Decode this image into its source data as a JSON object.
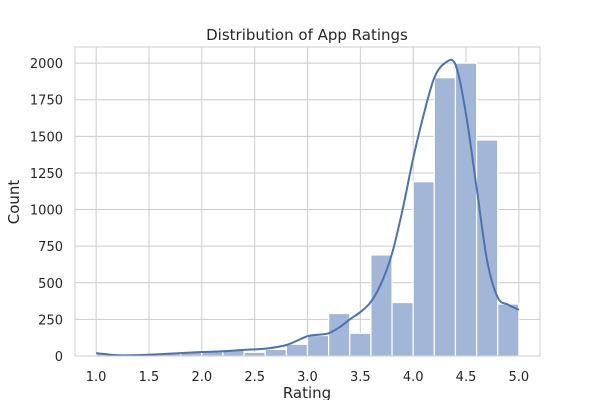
{
  "chart_data": {
    "type": "bar",
    "title": "Distribution of App Ratings",
    "xlabel": "Rating",
    "ylabel": "Count",
    "xlim": [
      0.8,
      5.2
    ],
    "ylim": [
      0,
      2110
    ],
    "xticks": [
      1.0,
      1.5,
      2.0,
      2.5,
      3.0,
      3.5,
      4.0,
      4.5,
      5.0
    ],
    "xtick_labels": [
      "1.0",
      "1.5",
      "2.0",
      "2.5",
      "3.0",
      "3.5",
      "4.0",
      "4.5",
      "5.0"
    ],
    "yticks": [
      0,
      250,
      500,
      750,
      1000,
      1250,
      1500,
      1750,
      2000
    ],
    "ytick_labels": [
      "0",
      "250",
      "500",
      "750",
      "1000",
      "1250",
      "1500",
      "1750",
      "2000"
    ],
    "grid": true,
    "bin_edges": [
      1.0,
      1.2,
      1.4,
      1.6,
      1.8,
      2.0,
      2.2,
      2.4,
      2.6,
      2.8,
      3.0,
      3.2,
      3.4,
      3.6,
      3.8,
      4.0,
      4.2,
      4.4,
      4.6,
      4.8,
      5.0
    ],
    "counts": [
      17,
      3,
      11,
      15,
      27,
      30,
      45,
      25,
      45,
      80,
      140,
      290,
      155,
      690,
      365,
      1190,
      1900,
      2000,
      1475,
      355
    ],
    "kde": {
      "x": [
        1.0,
        1.1,
        1.2,
        1.4,
        1.6,
        1.8,
        2.0,
        2.2,
        2.4,
        2.6,
        2.8,
        3.0,
        3.1,
        3.2,
        3.3,
        3.4,
        3.5,
        3.6,
        3.7,
        3.8,
        3.9,
        4.0,
        4.1,
        4.2,
        4.3,
        4.4,
        4.5,
        4.6,
        4.7,
        4.8,
        4.9,
        5.0
      ],
      "y": [
        20,
        12,
        5,
        6,
        12,
        20,
        27,
        32,
        42,
        50,
        75,
        135,
        145,
        155,
        195,
        250,
        300,
        370,
        500,
        700,
        1000,
        1350,
        1650,
        1900,
        2000,
        1990,
        1650,
        1150,
        650,
        400,
        350,
        315
      ]
    },
    "colors": {
      "bar_fill": "#a2b6d7",
      "bar_edge": "#ffffff",
      "kde_line": "#4c72b0",
      "grid": "#cccccc",
      "text": "#262626"
    }
  }
}
